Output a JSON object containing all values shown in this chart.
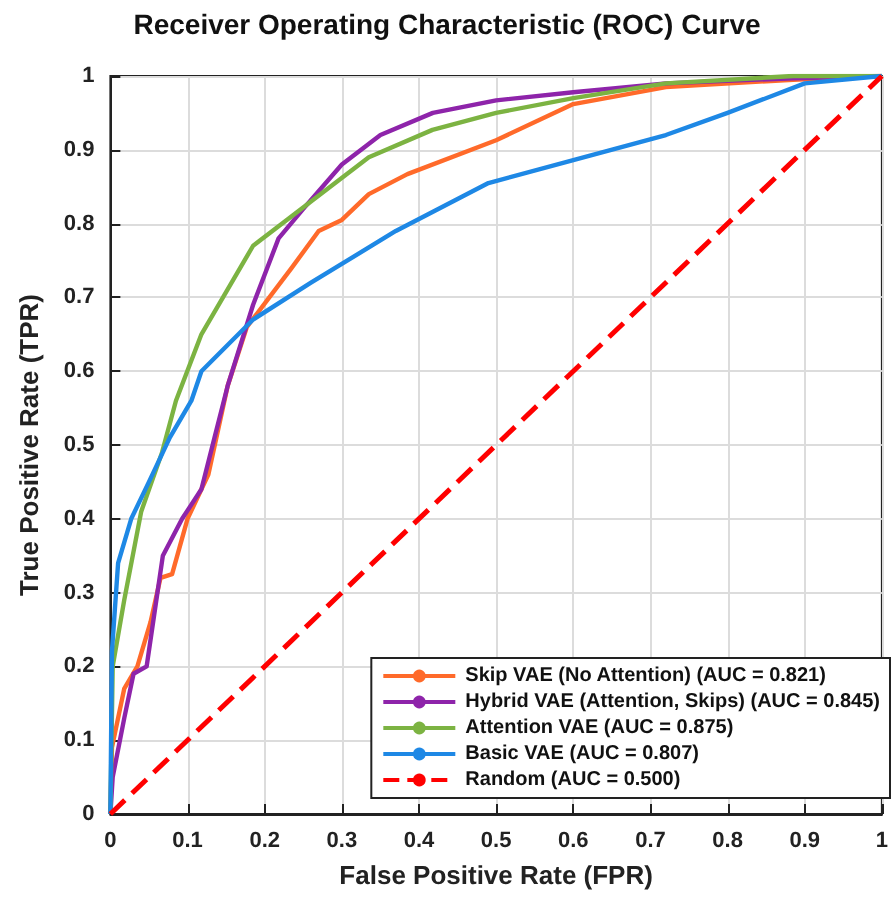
{
  "chart_data": {
    "type": "line",
    "title": "Receiver Operating Characteristic (ROC) Curve",
    "xlabel": "False Positive Rate (FPR)",
    "ylabel": "True Positive Rate (TPR)",
    "xlim": [
      0,
      1
    ],
    "ylim": [
      0,
      1
    ],
    "xticks": [
      0,
      0.1,
      0.2,
      0.3,
      0.4,
      0.5,
      0.6,
      0.7,
      0.8,
      0.9,
      1
    ],
    "yticks": [
      0,
      0.1,
      0.2,
      0.3,
      0.4,
      0.5,
      0.6,
      0.7,
      0.8,
      0.9,
      1
    ],
    "grid": true,
    "legend": "bottom right",
    "marker": "none",
    "series": [
      {
        "name": "Skip VAE (No Attention) (AUC = 0.821)",
        "color": "#ff6a2a",
        "x": [
          0,
          0.002,
          0.018,
          0.035,
          0.052,
          0.065,
          0.08,
          0.1,
          0.127,
          0.152,
          0.177,
          0.235,
          0.27,
          0.3,
          0.335,
          0.385,
          0.5,
          0.6,
          0.72,
          0.885,
          1
        ],
        "values": [
          0,
          0.09,
          0.17,
          0.2,
          0.26,
          0.32,
          0.325,
          0.4,
          0.46,
          0.58,
          0.66,
          0.74,
          0.79,
          0.805,
          0.84,
          0.867,
          0.913,
          0.962,
          0.985,
          0.995,
          1
        ]
      },
      {
        "name": "Hybrid VAE (Attention, Skips) (AUC = 0.845)",
        "color": "#8e24aa",
        "x": [
          0,
          0.003,
          0.018,
          0.03,
          0.047,
          0.068,
          0.093,
          0.118,
          0.135,
          0.152,
          0.185,
          0.218,
          0.25,
          0.3,
          0.35,
          0.418,
          0.5,
          0.6,
          0.72,
          0.885,
          1
        ],
        "values": [
          0,
          0.05,
          0.13,
          0.19,
          0.2,
          0.35,
          0.4,
          0.44,
          0.51,
          0.58,
          0.69,
          0.78,
          0.82,
          0.88,
          0.92,
          0.95,
          0.967,
          0.978,
          0.99,
          0.997,
          1
        ]
      },
      {
        "name": "Attention VAE (AUC = 0.875)",
        "color": "#7cb342",
        "x": [
          0,
          0.003,
          0.018,
          0.04,
          0.067,
          0.085,
          0.118,
          0.185,
          0.26,
          0.335,
          0.4175,
          0.5,
          0.6,
          0.72,
          0.885,
          1
        ],
        "values": [
          0,
          0.2,
          0.29,
          0.41,
          0.49,
          0.56,
          0.65,
          0.77,
          0.83,
          0.89,
          0.927,
          0.95,
          0.97,
          0.99,
          1,
          1
        ]
      },
      {
        "name": "Basic VAE (AUC = 0.807)",
        "color": "#1e88e5",
        "x": [
          0,
          0.002,
          0.01,
          0.027,
          0.05,
          0.077,
          0.105,
          0.118,
          0.185,
          0.26,
          0.37,
          0.49,
          0.6,
          0.72,
          0.8,
          0.9,
          1
        ],
        "values": [
          0,
          0.22,
          0.34,
          0.4,
          0.45,
          0.51,
          0.56,
          0.6,
          0.67,
          0.72,
          0.79,
          0.855,
          0.886,
          0.92,
          0.95,
          0.99,
          1
        ]
      },
      {
        "name": "Random (AUC = 0.500)",
        "color": "#ff0000",
        "line_style": "dashed",
        "x": [
          0,
          1
        ],
        "values": [
          0,
          1
        ]
      }
    ]
  }
}
